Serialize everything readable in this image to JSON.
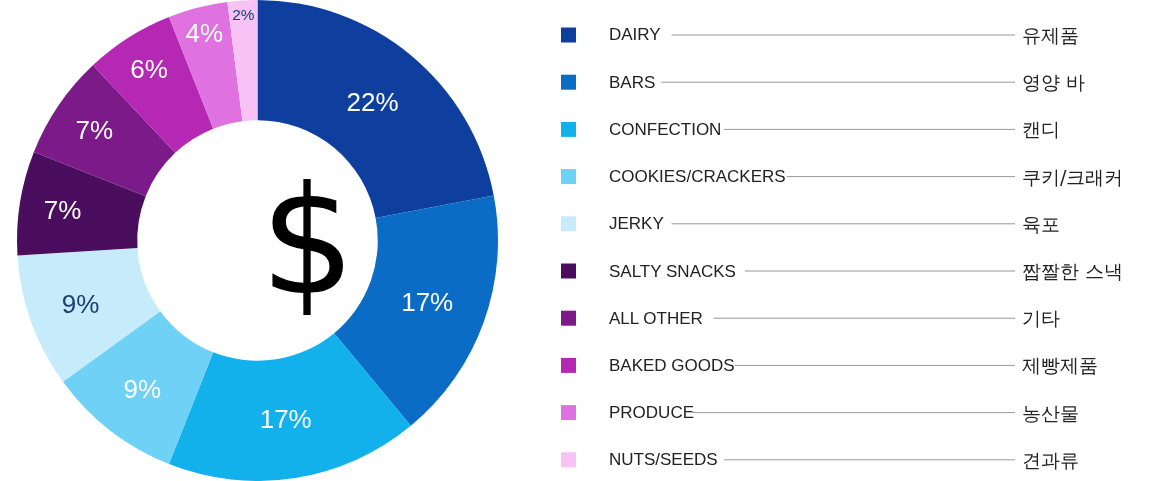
{
  "chart_data": {
    "type": "donut",
    "categories": [
      "DAIRY",
      "BARS",
      "CONFECTION",
      "COOKIES/CRACKERS",
      "JERKY",
      "SALTY SNACKS",
      "ALL OTHER",
      "BAKED GOODS",
      "PRODUCE",
      "NUTS/SEEDS"
    ],
    "values": [
      22,
      17,
      17,
      9,
      9,
      7,
      7,
      6,
      4,
      2
    ],
    "value_labels": [
      "22%",
      "17%",
      "17%",
      "9%",
      "9%",
      "7%",
      "7%",
      "6%",
      "4%",
      "2%"
    ],
    "colors": [
      "#0e3f9e",
      "#0a6cc4",
      "#12b1ec",
      "#6fd1f6",
      "#c6ecfb",
      "#4b0e5f",
      "#7b1a88",
      "#b428b3",
      "#df72e0",
      "#f7c2f4"
    ],
    "annotations": [
      "유제품",
      "영양 바",
      "캔디",
      "쿠키/크래커",
      "육포",
      "짭짤한 스낵",
      "기타",
      "제빵제품",
      "농산물",
      "견과류",
      "$"
    ],
    "legend": "right"
  }
}
